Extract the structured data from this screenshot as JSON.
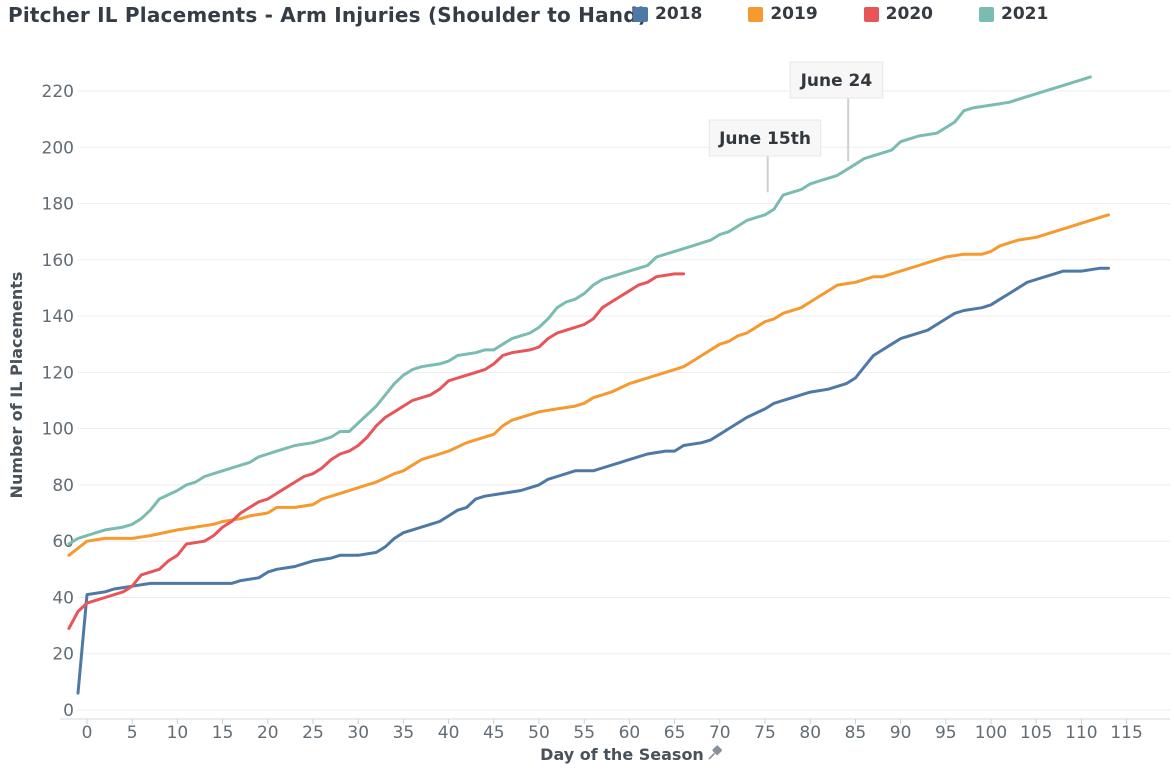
{
  "header": {
    "title": "Pitcher IL Placements - Arm Injuries (Shoulder to Hand)"
  },
  "chart_data": {
    "type": "line",
    "title": "Pitcher IL Placements - Arm Injuries (Shoulder to Hand)",
    "xlabel": "Day of the Season",
    "xlabel_icon": "pushpin-icon",
    "ylabel": "Number of IL Placements",
    "xlim": [
      -3,
      118
    ],
    "ylim": [
      0,
      230
    ],
    "grid": "horizontal-only",
    "legend_position": "top-right",
    "x_ticks": [
      0,
      5,
      10,
      15,
      20,
      25,
      30,
      35,
      40,
      45,
      50,
      55,
      60,
      65,
      70,
      75,
      80,
      85,
      90,
      95,
      100,
      105,
      110,
      115
    ],
    "y_ticks": [
      0,
      20,
      40,
      60,
      80,
      100,
      120,
      140,
      160,
      180,
      200,
      220
    ],
    "annotations": [
      {
        "text": "June 15th",
        "line_day": 75.3,
        "line_value_end": 184,
        "box_day": 75.0,
        "box_top": 120
      },
      {
        "text": "June 24",
        "line_day": 84.2,
        "line_value_end": 195,
        "box_day": 82.9,
        "box_top": 62
      }
    ],
    "series": [
      {
        "name": "2018",
        "color": "#4e79a7",
        "points": [
          [
            -1,
            6
          ],
          [
            0,
            41
          ],
          [
            2,
            42
          ],
          [
            3,
            43
          ],
          [
            5,
            44
          ],
          [
            7,
            45
          ],
          [
            10,
            45
          ],
          [
            13,
            45
          ],
          [
            16,
            45
          ],
          [
            17,
            46
          ],
          [
            19,
            47
          ],
          [
            20,
            49
          ],
          [
            21,
            50
          ],
          [
            23,
            51
          ],
          [
            24,
            52
          ],
          [
            25,
            53
          ],
          [
            27,
            54
          ],
          [
            28,
            55
          ],
          [
            30,
            55
          ],
          [
            32,
            56
          ],
          [
            33,
            58
          ],
          [
            34,
            61
          ],
          [
            35,
            63
          ],
          [
            36,
            64
          ],
          [
            38,
            66
          ],
          [
            39,
            67
          ],
          [
            40,
            69
          ],
          [
            41,
            71
          ],
          [
            42,
            72
          ],
          [
            43,
            75
          ],
          [
            44,
            76
          ],
          [
            46,
            77
          ],
          [
            48,
            78
          ],
          [
            49,
            79
          ],
          [
            50,
            80
          ],
          [
            51,
            82
          ],
          [
            52,
            83
          ],
          [
            54,
            85
          ],
          [
            56,
            85
          ],
          [
            57,
            86
          ],
          [
            59,
            88
          ],
          [
            60,
            89
          ],
          [
            61,
            90
          ],
          [
            62,
            91
          ],
          [
            64,
            92
          ],
          [
            65,
            92
          ],
          [
            66,
            94
          ],
          [
            68,
            95
          ],
          [
            69,
            96
          ],
          [
            70,
            98
          ],
          [
            71,
            100
          ],
          [
            72,
            102
          ],
          [
            73,
            104
          ],
          [
            75,
            107
          ],
          [
            76,
            109
          ],
          [
            78,
            111
          ],
          [
            80,
            113
          ],
          [
            82,
            114
          ],
          [
            84,
            116
          ],
          [
            85,
            118
          ],
          [
            86,
            122
          ],
          [
            87,
            126
          ],
          [
            88,
            128
          ],
          [
            89,
            130
          ],
          [
            90,
            132
          ],
          [
            91,
            133
          ],
          [
            93,
            135
          ],
          [
            94,
            137
          ],
          [
            95,
            139
          ],
          [
            96,
            141
          ],
          [
            97,
            142
          ],
          [
            99,
            143
          ],
          [
            100,
            144
          ],
          [
            101,
            146
          ],
          [
            102,
            148
          ],
          [
            103,
            150
          ],
          [
            104,
            152
          ],
          [
            105,
            153
          ],
          [
            106,
            154
          ],
          [
            107,
            155
          ],
          [
            108,
            156
          ],
          [
            110,
            156
          ],
          [
            112,
            157
          ],
          [
            113,
            157
          ]
        ]
      },
      {
        "name": "2019",
        "color": "#f6992e",
        "points": [
          [
            -2,
            55
          ],
          [
            0,
            60
          ],
          [
            2,
            61
          ],
          [
            5,
            61
          ],
          [
            7,
            62
          ],
          [
            10,
            64
          ],
          [
            12,
            65
          ],
          [
            14,
            66
          ],
          [
            15,
            67
          ],
          [
            17,
            68
          ],
          [
            18,
            69
          ],
          [
            20,
            70
          ],
          [
            21,
            72
          ],
          [
            23,
            72
          ],
          [
            25,
            73
          ],
          [
            26,
            75
          ],
          [
            28,
            77
          ],
          [
            30,
            79
          ],
          [
            32,
            81
          ],
          [
            34,
            84
          ],
          [
            35,
            85
          ],
          [
            36,
            87
          ],
          [
            37,
            89
          ],
          [
            39,
            91
          ],
          [
            40,
            92
          ],
          [
            42,
            95
          ],
          [
            44,
            97
          ],
          [
            45,
            98
          ],
          [
            46,
            101
          ],
          [
            47,
            103
          ],
          [
            48,
            104
          ],
          [
            50,
            106
          ],
          [
            52,
            107
          ],
          [
            54,
            108
          ],
          [
            55,
            109
          ],
          [
            56,
            111
          ],
          [
            58,
            113
          ],
          [
            60,
            116
          ],
          [
            62,
            118
          ],
          [
            63,
            119
          ],
          [
            65,
            121
          ],
          [
            66,
            122
          ],
          [
            67,
            124
          ],
          [
            68,
            126
          ],
          [
            70,
            130
          ],
          [
            71,
            131
          ],
          [
            72,
            133
          ],
          [
            73,
            134
          ],
          [
            75,
            138
          ],
          [
            76,
            139
          ],
          [
            77,
            141
          ],
          [
            79,
            143
          ],
          [
            80,
            145
          ],
          [
            81,
            147
          ],
          [
            82,
            149
          ],
          [
            83,
            151
          ],
          [
            85,
            152
          ],
          [
            87,
            154
          ],
          [
            88,
            154
          ],
          [
            90,
            156
          ],
          [
            92,
            158
          ],
          [
            93,
            159
          ],
          [
            95,
            161
          ],
          [
            97,
            162
          ],
          [
            99,
            162
          ],
          [
            100,
            163
          ],
          [
            101,
            165
          ],
          [
            103,
            167
          ],
          [
            105,
            168
          ],
          [
            107,
            170
          ],
          [
            109,
            172
          ],
          [
            110,
            173
          ],
          [
            112,
            175
          ],
          [
            113,
            176
          ]
        ]
      },
      {
        "name": "2020",
        "color": "#e85559",
        "points": [
          [
            -2,
            29
          ],
          [
            -1,
            35
          ],
          [
            0,
            38
          ],
          [
            1,
            39
          ],
          [
            2,
            40
          ],
          [
            4,
            42
          ],
          [
            5,
            44
          ],
          [
            6,
            48
          ],
          [
            8,
            50
          ],
          [
            9,
            53
          ],
          [
            10,
            55
          ],
          [
            11,
            59
          ],
          [
            13,
            60
          ],
          [
            14,
            62
          ],
          [
            15,
            65
          ],
          [
            16,
            67
          ],
          [
            17,
            70
          ],
          [
            18,
            72
          ],
          [
            19,
            74
          ],
          [
            20,
            75
          ],
          [
            21,
            77
          ],
          [
            22,
            79
          ],
          [
            23,
            81
          ],
          [
            24,
            83
          ],
          [
            25,
            84
          ],
          [
            26,
            86
          ],
          [
            27,
            89
          ],
          [
            28,
            91
          ],
          [
            29,
            92
          ],
          [
            30,
            94
          ],
          [
            31,
            97
          ],
          [
            32,
            101
          ],
          [
            33,
            104
          ],
          [
            34,
            106
          ],
          [
            35,
            108
          ],
          [
            36,
            110
          ],
          [
            38,
            112
          ],
          [
            39,
            114
          ],
          [
            40,
            117
          ],
          [
            41,
            118
          ],
          [
            42,
            119
          ],
          [
            43,
            120
          ],
          [
            44,
            121
          ],
          [
            45,
            123
          ],
          [
            46,
            126
          ],
          [
            47,
            127
          ],
          [
            49,
            128
          ],
          [
            50,
            129
          ],
          [
            51,
            132
          ],
          [
            52,
            134
          ],
          [
            53,
            135
          ],
          [
            55,
            137
          ],
          [
            56,
            139
          ],
          [
            57,
            143
          ],
          [
            58,
            145
          ],
          [
            59,
            147
          ],
          [
            60,
            149
          ],
          [
            61,
            151
          ],
          [
            62,
            152
          ],
          [
            63,
            154
          ],
          [
            65,
            155
          ],
          [
            66,
            155
          ]
        ]
      },
      {
        "name": "2021",
        "color": "#7abcb2",
        "points": [
          [
            -2,
            59
          ],
          [
            -1,
            61
          ],
          [
            0,
            62
          ],
          [
            1,
            63
          ],
          [
            2,
            64
          ],
          [
            4,
            65
          ],
          [
            5,
            66
          ],
          [
            6,
            68
          ],
          [
            7,
            71
          ],
          [
            8,
            75
          ],
          [
            10,
            78
          ],
          [
            11,
            80
          ],
          [
            12,
            81
          ],
          [
            13,
            83
          ],
          [
            15,
            85
          ],
          [
            16,
            86
          ],
          [
            17,
            87
          ],
          [
            18,
            88
          ],
          [
            19,
            90
          ],
          [
            20,
            91
          ],
          [
            21,
            92
          ],
          [
            23,
            94
          ],
          [
            25,
            95
          ],
          [
            26,
            96
          ],
          [
            27,
            97
          ],
          [
            28,
            99
          ],
          [
            29,
            99
          ],
          [
            30,
            102
          ],
          [
            31,
            105
          ],
          [
            32,
            108
          ],
          [
            33,
            112
          ],
          [
            34,
            116
          ],
          [
            35,
            119
          ],
          [
            36,
            121
          ],
          [
            37,
            122
          ],
          [
            39,
            123
          ],
          [
            40,
            124
          ],
          [
            41,
            126
          ],
          [
            43,
            127
          ],
          [
            44,
            128
          ],
          [
            45,
            128
          ],
          [
            46,
            130
          ],
          [
            47,
            132
          ],
          [
            48,
            133
          ],
          [
            49,
            134
          ],
          [
            50,
            136
          ],
          [
            51,
            139
          ],
          [
            52,
            143
          ],
          [
            53,
            145
          ],
          [
            54,
            146
          ],
          [
            55,
            148
          ],
          [
            56,
            151
          ],
          [
            57,
            153
          ],
          [
            58,
            154
          ],
          [
            60,
            156
          ],
          [
            61,
            157
          ],
          [
            62,
            158
          ],
          [
            63,
            161
          ],
          [
            64,
            162
          ],
          [
            65,
            163
          ],
          [
            67,
            165
          ],
          [
            68,
            166
          ],
          [
            69,
            167
          ],
          [
            70,
            169
          ],
          [
            71,
            170
          ],
          [
            72,
            172
          ],
          [
            73,
            174
          ],
          [
            74,
            175
          ],
          [
            75,
            176
          ],
          [
            76,
            178
          ],
          [
            77,
            183
          ],
          [
            78,
            184
          ],
          [
            79,
            185
          ],
          [
            80,
            187
          ],
          [
            81,
            188
          ],
          [
            82,
            189
          ],
          [
            83,
            190
          ],
          [
            84,
            192
          ],
          [
            85,
            194
          ],
          [
            86,
            196
          ],
          [
            87,
            197
          ],
          [
            88,
            198
          ],
          [
            89,
            199
          ],
          [
            90,
            202
          ],
          [
            91,
            203
          ],
          [
            92,
            204
          ],
          [
            94,
            205
          ],
          [
            95,
            207
          ],
          [
            96,
            209
          ],
          [
            97,
            213
          ],
          [
            98,
            214
          ],
          [
            100,
            215
          ],
          [
            102,
            216
          ],
          [
            103,
            217
          ],
          [
            104,
            218
          ],
          [
            105,
            219
          ],
          [
            106,
            220
          ],
          [
            107,
            221
          ],
          [
            108,
            222
          ],
          [
            109,
            223
          ],
          [
            110,
            224
          ],
          [
            111,
            225
          ]
        ]
      }
    ]
  }
}
